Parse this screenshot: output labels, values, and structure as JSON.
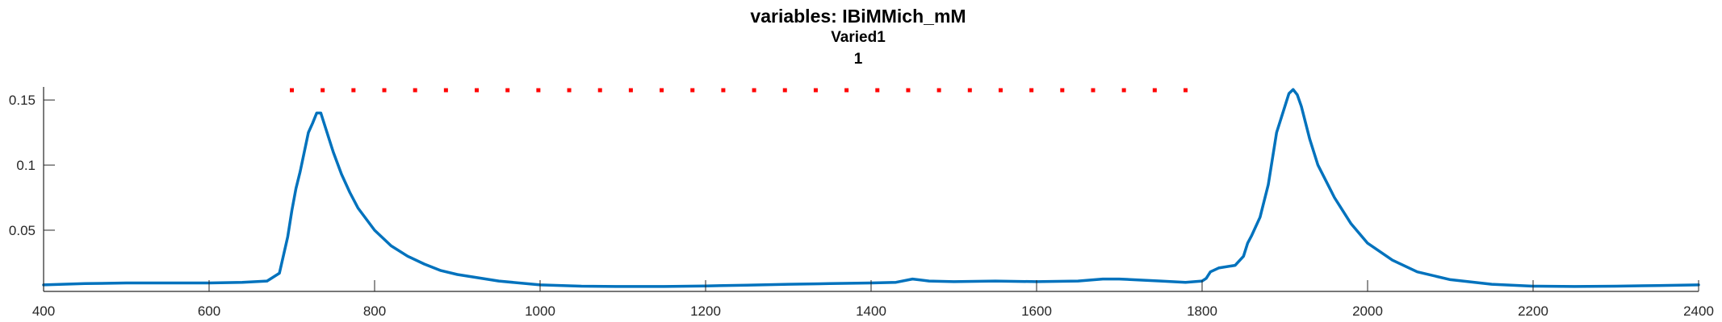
{
  "chart_data": {
    "type": "line",
    "title": "variables: IBiMMich_mM",
    "subtitle": "Varied1",
    "subtitle2": "1",
    "xlabel": "",
    "ylabel": "",
    "xlim": [
      400,
      2400
    ],
    "ylim": [
      0.003,
      0.16
    ],
    "xticks": [
      400,
      600,
      800,
      1000,
      1200,
      1400,
      1600,
      1800,
      2000,
      2200,
      2400
    ],
    "xtick_labels": [
      "400",
      "600",
      "800",
      "1000",
      "1200",
      "1400",
      "1600",
      "1800",
      "2000",
      "2200",
      "2400"
    ],
    "yticks": [
      0.05,
      0.1,
      0.15
    ],
    "ytick_labels": [
      "0.05",
      "0.1",
      "0.15"
    ],
    "grid": false,
    "series": [
      {
        "color": "#0072BD",
        "style": "solid",
        "x": [
          400,
          450,
          500,
          550,
          600,
          640,
          670,
          685,
          695,
          700,
          705,
          710,
          715,
          720,
          725,
          730,
          735,
          740,
          750,
          760,
          770,
          780,
          800,
          820,
          840,
          860,
          880,
          900,
          950,
          1000,
          1050,
          1100,
          1150,
          1200,
          1250,
          1300,
          1350,
          1400,
          1430,
          1450,
          1470,
          1500,
          1550,
          1600,
          1650,
          1680,
          1700,
          1750,
          1780,
          1800,
          1805,
          1810,
          1820,
          1840,
          1850,
          1855,
          1860,
          1870,
          1880,
          1890,
          1900,
          1905,
          1910,
          1915,
          1920,
          1930,
          1940,
          1960,
          1980,
          2000,
          2030,
          2060,
          2100,
          2150,
          2200,
          2250,
          2300,
          2350,
          2400
        ],
        "y": [
          0.008,
          0.009,
          0.0095,
          0.0095,
          0.0095,
          0.01,
          0.011,
          0.017,
          0.045,
          0.065,
          0.082,
          0.095,
          0.11,
          0.125,
          0.132,
          0.14,
          0.14,
          0.13,
          0.11,
          0.093,
          0.079,
          0.067,
          0.05,
          0.038,
          0.03,
          0.024,
          0.019,
          0.016,
          0.011,
          0.008,
          0.007,
          0.0068,
          0.0068,
          0.0072,
          0.0078,
          0.0085,
          0.009,
          0.0095,
          0.01,
          0.0125,
          0.011,
          0.0105,
          0.011,
          0.0105,
          0.011,
          0.0125,
          0.0125,
          0.011,
          0.01,
          0.011,
          0.013,
          0.018,
          0.021,
          0.023,
          0.03,
          0.04,
          0.046,
          0.06,
          0.085,
          0.125,
          0.145,
          0.155,
          0.158,
          0.154,
          0.145,
          0.12,
          0.1,
          0.075,
          0.055,
          0.04,
          0.027,
          0.018,
          0.012,
          0.0085,
          0.007,
          0.0068,
          0.007,
          0.0075,
          0.008
        ]
      },
      {
        "color": "#FF0000",
        "style": "dotted",
        "x": [
          700,
          1780
        ],
        "y": [
          0.1575,
          0.1575
        ]
      }
    ]
  }
}
